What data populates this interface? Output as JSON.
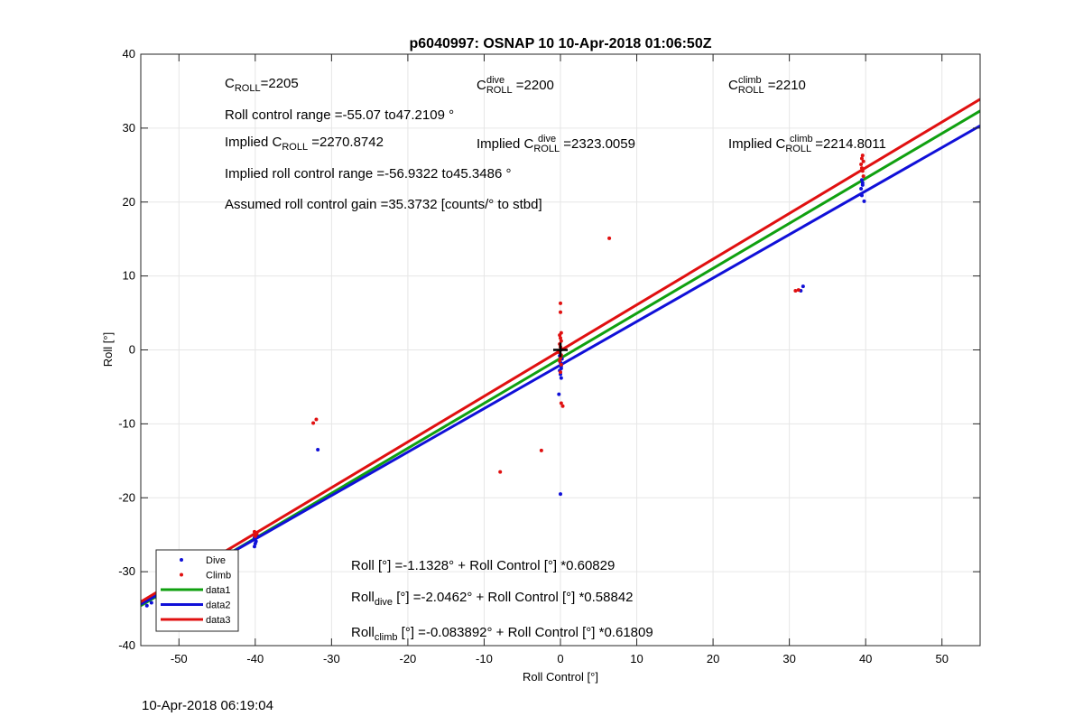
{
  "colors": {
    "dive": "#1010d8",
    "climb": "#e01010",
    "data1": "#10a010",
    "data2": "#1010d8",
    "data3": "#e01010",
    "grid": "#e6e6e6",
    "axis": "#262626"
  },
  "timestamp": "10-Apr-2018 06:19:04",
  "chart_data": {
    "type": "scatter",
    "title": "p6040997: OSNAP 10 10-Apr-2018 01:06:50Z",
    "xlabel": "Roll Control [°]",
    "ylabel": "Roll [°]",
    "xlim": [
      -55,
      55
    ],
    "ylim": [
      -40,
      40
    ],
    "xticks": [
      -50,
      -40,
      -30,
      -20,
      -10,
      0,
      10,
      20,
      30,
      40,
      50
    ],
    "yticks": [
      -40,
      -30,
      -20,
      -10,
      0,
      10,
      20,
      30,
      40
    ],
    "grid": true,
    "legend_position": "bottom-left",
    "annotations": {
      "c_roll": {
        "base": "C",
        "sub": "ROLL",
        "value": "=2205"
      },
      "c_roll_dive": {
        "base": "C",
        "sup": "dive",
        "sub": "ROLL",
        "value": " =2200"
      },
      "c_roll_climb": {
        "base": "C",
        "sup": "climb",
        "sub": "ROLL",
        "value": " =2210"
      },
      "roll_control_range": "Roll control range =-55.07 to47.2109 °",
      "implied_c_roll": {
        "prefix": "Implied C",
        "sub": "ROLL",
        "value": " =2270.8742"
      },
      "implied_c_roll_dive": {
        "prefix": "Implied C",
        "sup": "dive",
        "sub": "ROLL",
        "value": " =2323.0059"
      },
      "implied_c_roll_climb": {
        "prefix": "Implied C",
        "sup": "climb",
        "sub": "ROLL",
        "value": " =2214.8011"
      },
      "implied_range": "Implied roll control range =-56.9322 to45.3486 °",
      "gain": "Assumed roll control gain =35.3732 [counts/° to stbd]",
      "fit_all": "Roll [°] =-1.1328° + Roll Control [°] *0.60829",
      "fit_dive": {
        "base": "Roll",
        "sub": "dive",
        "rest": " [°] =-2.0462° + Roll Control [°] *0.58842"
      },
      "fit_climb": {
        "base": "Roll",
        "sub": "climb",
        "rest": " [°] =-0.083892° + Roll Control [°] *0.61809"
      }
    },
    "legend": [
      {
        "name": "Dive",
        "kind": "point",
        "color": "#1010d8"
      },
      {
        "name": "Climb",
        "kind": "point",
        "color": "#e01010"
      },
      {
        "name": "data1",
        "kind": "line",
        "color": "#10a010"
      },
      {
        "name": "data2",
        "kind": "line",
        "color": "#1010d8"
      },
      {
        "name": "data3",
        "kind": "line",
        "color": "#e01010"
      }
    ],
    "lines": [
      {
        "name": "data1",
        "intercept": -1.1328,
        "slope": 0.60829,
        "color": "#10a010"
      },
      {
        "name": "data2",
        "intercept": -2.0462,
        "slope": 0.58842,
        "color": "#1010d8"
      },
      {
        "name": "data3",
        "intercept": -0.083892,
        "slope": 0.61809,
        "color": "#e01010"
      }
    ],
    "series": [
      {
        "name": "Dive",
        "color": "#1010d8",
        "points": [
          [
            -53.6,
            -34.2
          ],
          [
            -54.2,
            -34.6
          ],
          [
            -40.1,
            -25.4
          ],
          [
            -39.9,
            -25.9
          ],
          [
            -40.0,
            -26.2
          ],
          [
            -40.1,
            -26.6
          ],
          [
            -39.8,
            -25.1
          ],
          [
            -31.8,
            -13.5
          ],
          [
            0.0,
            -19.5
          ],
          [
            -0.2,
            -6.0
          ],
          [
            0.1,
            -3.8
          ],
          [
            0.0,
            -3.3
          ],
          [
            -0.1,
            -2.8
          ],
          [
            0.1,
            -2.2
          ],
          [
            0.0,
            -1.7
          ],
          [
            0.2,
            -1.2
          ],
          [
            -0.1,
            -0.8
          ],
          [
            0.1,
            -2.5
          ],
          [
            31.8,
            8.6
          ],
          [
            31.5,
            8.0
          ],
          [
            39.5,
            23.0
          ],
          [
            39.6,
            22.6
          ],
          [
            39.4,
            21.8
          ],
          [
            39.5,
            20.9
          ],
          [
            39.8,
            20.1
          ],
          [
            39.6,
            22.3
          ]
        ]
      },
      {
        "name": "Climb",
        "color": "#e01010",
        "points": [
          [
            -50.1,
            -30.6
          ],
          [
            -40.1,
            -24.6
          ],
          [
            -39.8,
            -24.9
          ],
          [
            -40.0,
            -25.2
          ],
          [
            -32.0,
            -9.4
          ],
          [
            -32.4,
            -9.9
          ],
          [
            -7.9,
            -16.5
          ],
          [
            -2.5,
            -13.6
          ],
          [
            6.4,
            15.1
          ],
          [
            0.0,
            6.3
          ],
          [
            0.0,
            5.1
          ],
          [
            0.1,
            2.3
          ],
          [
            -0.1,
            2.0
          ],
          [
            0.0,
            1.6
          ],
          [
            0.1,
            1.2
          ],
          [
            -0.1,
            0.8
          ],
          [
            0.0,
            0.4
          ],
          [
            0.2,
            0.1
          ],
          [
            -0.2,
            -0.3
          ],
          [
            0.1,
            -0.7
          ],
          [
            0.0,
            -1.1
          ],
          [
            -0.1,
            -1.5
          ],
          [
            0.1,
            -2.0
          ],
          [
            0.0,
            -3.0
          ],
          [
            0.1,
            -7.2
          ],
          [
            0.3,
            -7.6
          ],
          [
            30.8,
            8.0
          ],
          [
            31.2,
            8.1
          ],
          [
            39.6,
            26.3
          ],
          [
            39.5,
            25.9
          ],
          [
            39.7,
            25.5
          ],
          [
            39.4,
            25.1
          ],
          [
            39.5,
            24.6
          ],
          [
            39.6,
            24.2
          ],
          [
            39.7,
            23.5
          ]
        ]
      }
    ],
    "marker": {
      "type": "plus",
      "x": 0,
      "y": 0,
      "color": "#000000"
    }
  }
}
